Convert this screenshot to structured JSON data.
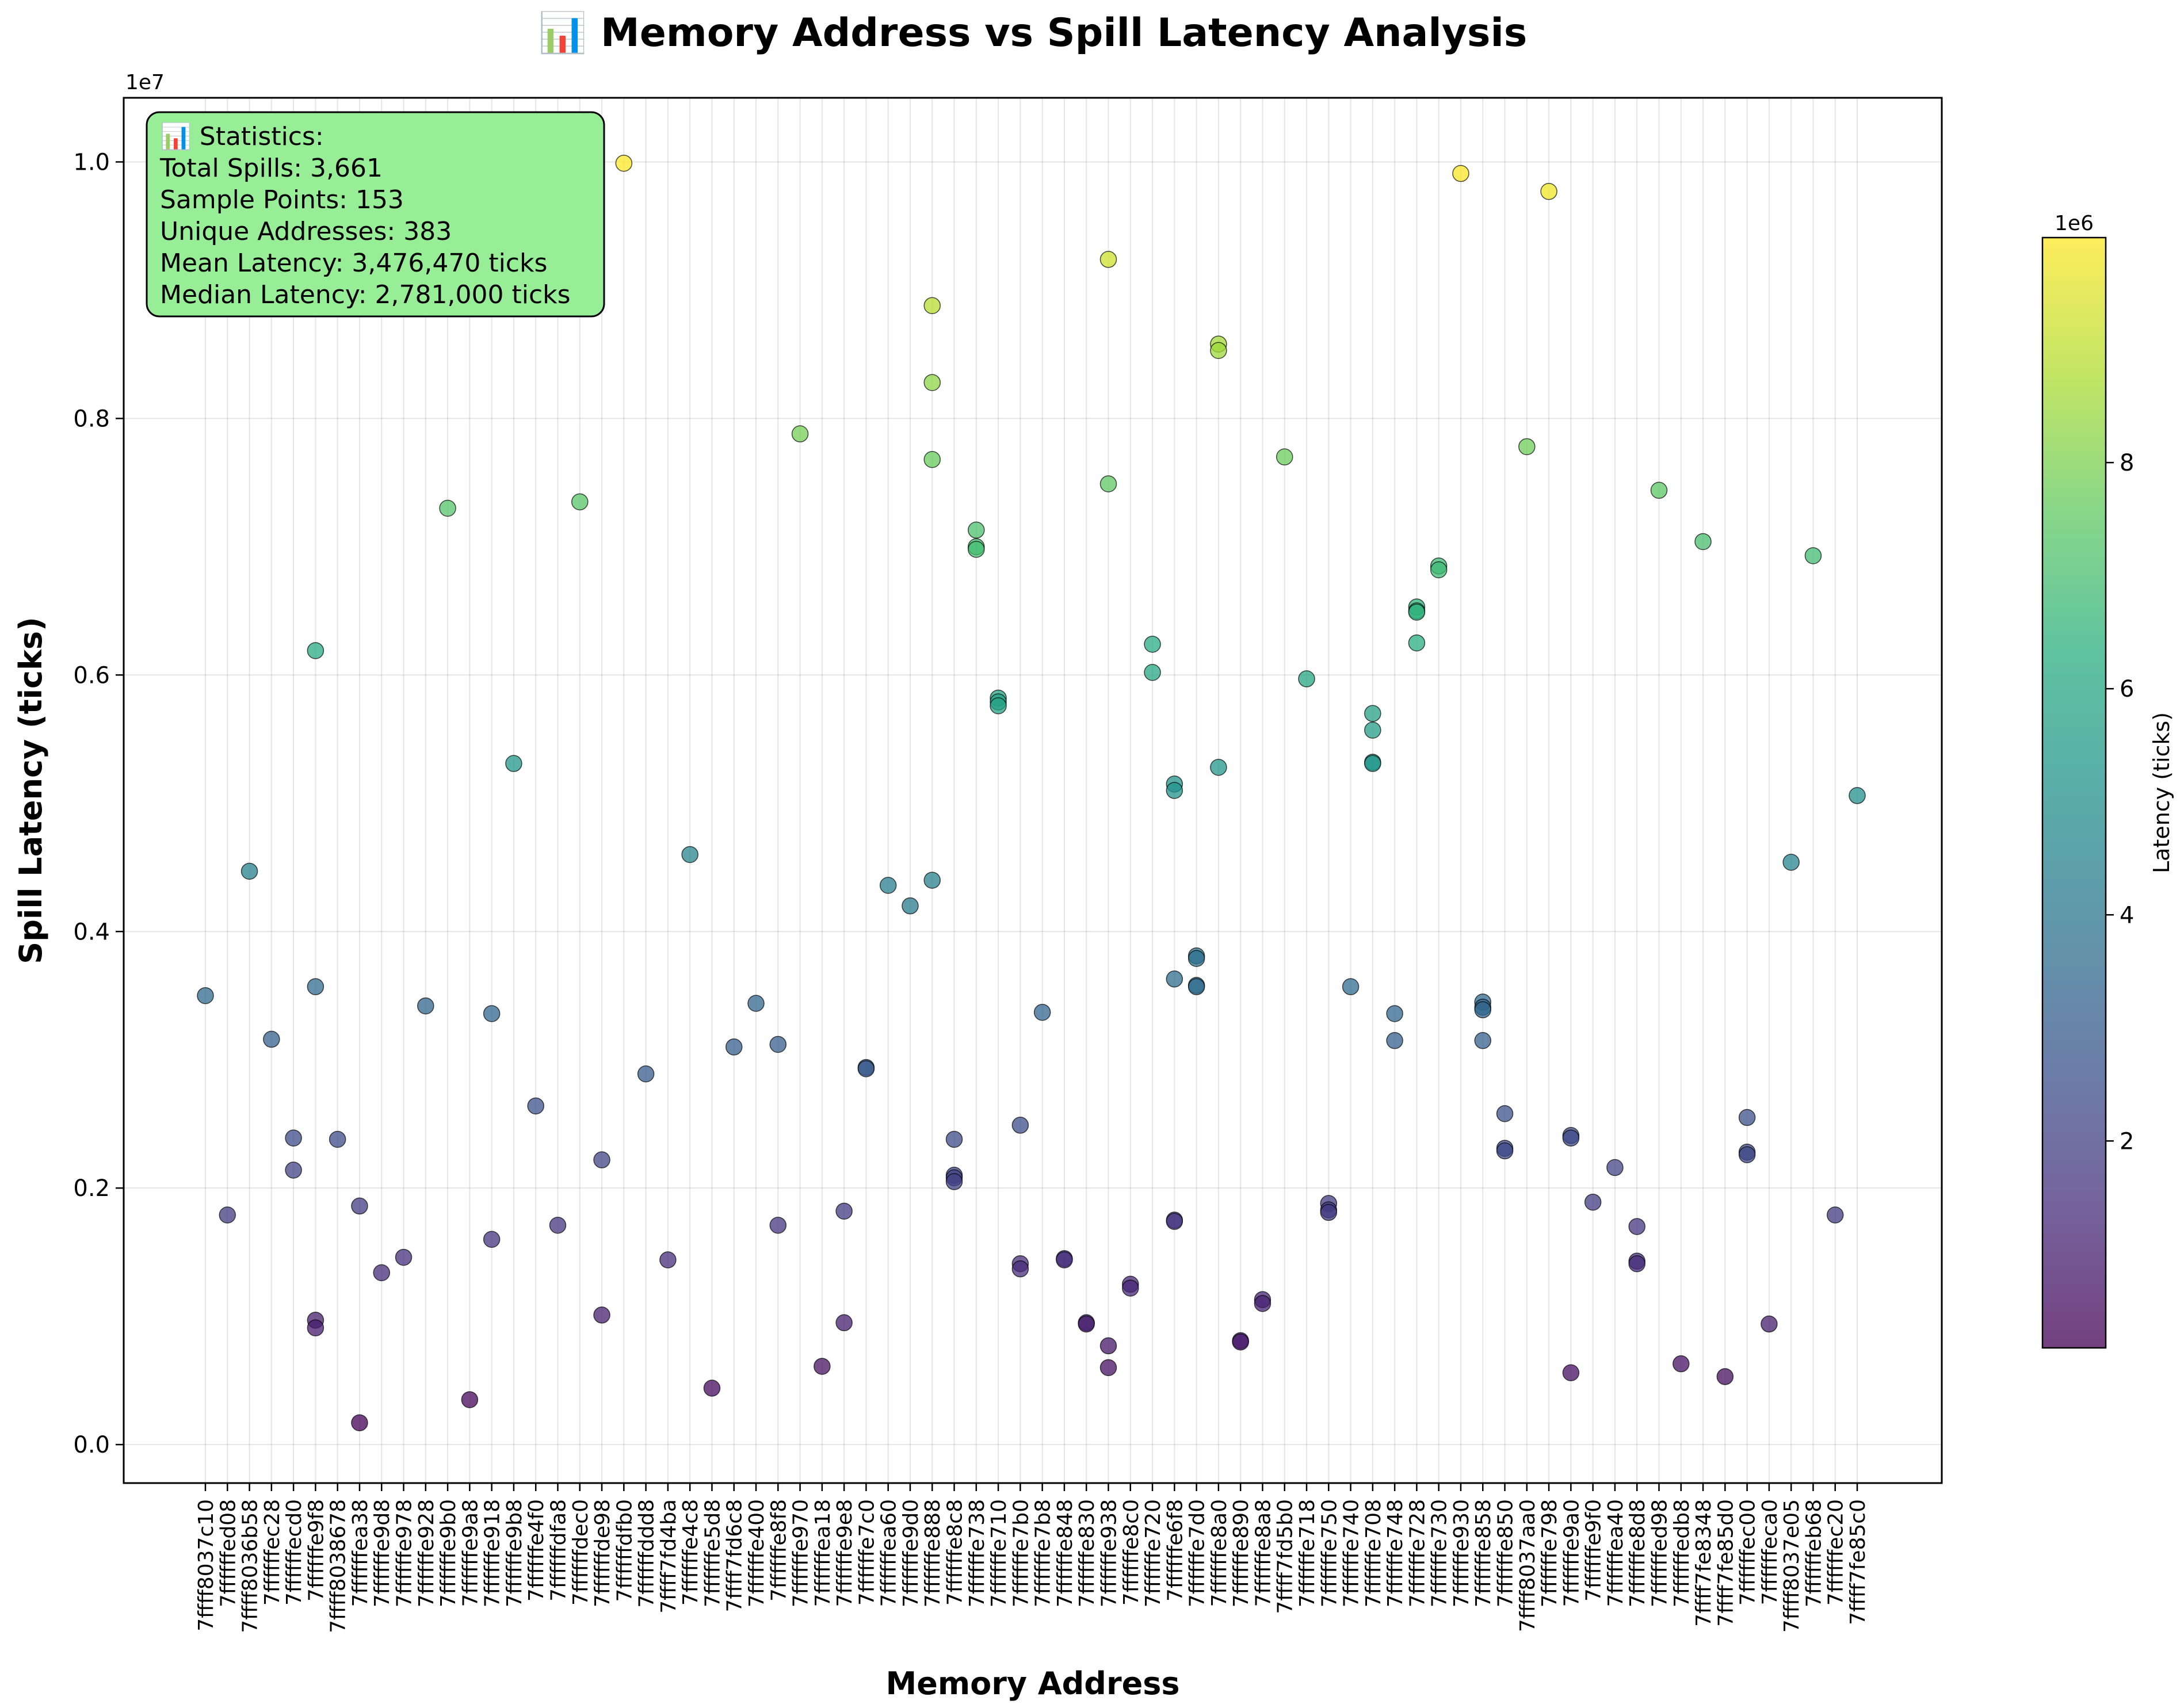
{
  "chart_data": {
    "type": "scatter",
    "title": "📊 Memory Address vs Spill Latency Analysis",
    "xlabel": "Memory Address",
    "ylabel": "Spill Latency (ticks)",
    "y_multiplier_label": "1e7",
    "ylim": [
      -300000,
      10500000
    ],
    "yticks": [
      0,
      2000000,
      4000000,
      6000000,
      8000000,
      10000000
    ],
    "ytick_labels": [
      "0.0",
      "0.2",
      "0.4",
      "0.6",
      "0.8",
      "1.0"
    ],
    "grid": true,
    "categories": [
      "7ffff8037c10",
      "7ffffffed08",
      "7ffff8036b58",
      "7ffffffec28",
      "7ffffffecd0",
      "7ffffffe9f8",
      "7ffff8038678",
      "7ffffffea38",
      "7ffffffe9d8",
      "7ffffffe978",
      "7ffffffe928",
      "7ffffffe9b0",
      "7ffffffe9a8",
      "7ffffffe918",
      "7ffffffe9b8",
      "7ffffffe4f0",
      "7ffffffdfa8",
      "7ffffffdec0",
      "7ffffffde98",
      "7ffffffdfb0",
      "7ffffffddd8",
      "7ffff7fd4ba",
      "7ffffffe4c8",
      "7ffffffe5d8",
      "7ffff7fd6c8",
      "7ffffffe400",
      "7ffffffe8f8",
      "7ffffffe970",
      "7ffffffea18",
      "7ffffffe9e8",
      "7ffffffe7c0",
      "7ffffffea60",
      "7ffffffe9d0",
      "7ffffffe888",
      "7ffffffe8c8",
      "7ffffffe738",
      "7ffffffe710",
      "7ffffffe7b0",
      "7ffffffe7b8",
      "7ffffffe848",
      "7ffffffe830",
      "7ffffffe938",
      "7ffffffe8c0",
      "7ffffffe720",
      "7ffffffe6f8",
      "7ffffffe7d0",
      "7ffffffe8a0",
      "7ffffffe890",
      "7ffffffe8a8",
      "7ffff7fd5b0",
      "7ffffffe718",
      "7ffffffe750",
      "7ffffffe740",
      "7ffffffe708",
      "7ffffffe748",
      "7ffffffe728",
      "7ffffffe730",
      "7ffffffe930",
      "7ffffffe858",
      "7ffffffe850",
      "7ffff8037aa0",
      "7ffffffe798",
      "7ffffffe9a0",
      "7ffffffe9f0",
      "7ffffffea40",
      "7ffffffe8d8",
      "7ffffffed98",
      "7ffffffedb8",
      "7ffff7fe8348",
      "7ffff7fe85d0",
      "7ffffffec00",
      "7ffffffeca0",
      "7ffff8037e05",
      "7ffffffeb68",
      "7ffffffec20",
      "7ffff7fe85c0"
    ],
    "points": [
      [
        0,
        3500000
      ],
      [
        1,
        1790000
      ],
      [
        2,
        4470000
      ],
      [
        3,
        3160000
      ],
      [
        4,
        2390000
      ],
      [
        4,
        2140000
      ],
      [
        5,
        6190000
      ],
      [
        5,
        3570000
      ],
      [
        5,
        970000
      ],
      [
        5,
        910000
      ],
      [
        6,
        2380000
      ],
      [
        7,
        1860000
      ],
      [
        7,
        170000
      ],
      [
        8,
        1340000
      ],
      [
        9,
        1460000
      ],
      [
        10,
        3420000
      ],
      [
        11,
        7300000
      ],
      [
        12,
        350000
      ],
      [
        13,
        3360000
      ],
      [
        13,
        1600000
      ],
      [
        14,
        5310000
      ],
      [
        15,
        2640000
      ],
      [
        16,
        1710000
      ],
      [
        17,
        7350000
      ],
      [
        18,
        2220000
      ],
      [
        18,
        1010000
      ],
      [
        19,
        9990000
      ],
      [
        20,
        2890000
      ],
      [
        21,
        1440000
      ],
      [
        22,
        4600000
      ],
      [
        23,
        440000
      ],
      [
        24,
        3100000
      ],
      [
        25,
        3440000
      ],
      [
        26,
        3120000
      ],
      [
        26,
        1710000
      ],
      [
        27,
        7880000
      ],
      [
        28,
        610000
      ],
      [
        29,
        1820000
      ],
      [
        29,
        950000
      ],
      [
        30,
        2940000
      ],
      [
        30,
        2930000
      ],
      [
        31,
        4360000
      ],
      [
        32,
        4200000
      ],
      [
        33,
        8880000
      ],
      [
        33,
        8280000
      ],
      [
        33,
        7680000
      ],
      [
        33,
        4400000
      ],
      [
        34,
        2380000
      ],
      [
        34,
        2100000
      ],
      [
        34,
        2080000
      ],
      [
        34,
        2050000
      ],
      [
        35,
        7130000
      ],
      [
        35,
        7000000
      ],
      [
        35,
        6980000
      ],
      [
        36,
        5820000
      ],
      [
        36,
        5790000
      ],
      [
        36,
        5760000
      ],
      [
        37,
        2490000
      ],
      [
        37,
        1410000
      ],
      [
        37,
        1370000
      ],
      [
        38,
        3370000
      ],
      [
        39,
        1450000
      ],
      [
        39,
        1440000
      ],
      [
        40,
        950000
      ],
      [
        40,
        940000
      ],
      [
        41,
        9240000
      ],
      [
        41,
        7490000
      ],
      [
        41,
        770000
      ],
      [
        41,
        600000
      ],
      [
        42,
        1250000
      ],
      [
        42,
        1220000
      ],
      [
        43,
        6240000
      ],
      [
        43,
        6020000
      ],
      [
        44,
        5150000
      ],
      [
        44,
        5100000
      ],
      [
        44,
        3630000
      ],
      [
        44,
        1750000
      ],
      [
        44,
        1740000
      ],
      [
        45,
        3810000
      ],
      [
        45,
        3790000
      ],
      [
        45,
        3580000
      ],
      [
        45,
        3570000
      ],
      [
        46,
        8580000
      ],
      [
        46,
        8530000
      ],
      [
        46,
        5280000
      ],
      [
        47,
        810000
      ],
      [
        47,
        800000
      ],
      [
        48,
        1130000
      ],
      [
        48,
        1100000
      ],
      [
        49,
        7700000
      ],
      [
        50,
        5970000
      ],
      [
        51,
        1880000
      ],
      [
        51,
        1830000
      ],
      [
        51,
        1810000
      ],
      [
        52,
        3570000
      ],
      [
        53,
        5700000
      ],
      [
        53,
        5570000
      ],
      [
        53,
        5320000
      ],
      [
        53,
        5310000
      ],
      [
        54,
        3360000
      ],
      [
        54,
        3150000
      ],
      [
        55,
        6530000
      ],
      [
        55,
        6500000
      ],
      [
        55,
        6490000
      ],
      [
        55,
        6250000
      ],
      [
        56,
        6850000
      ],
      [
        56,
        6820000
      ],
      [
        57,
        9910000
      ],
      [
        58,
        3450000
      ],
      [
        58,
        3410000
      ],
      [
        58,
        3390000
      ],
      [
        58,
        3150000
      ],
      [
        59,
        2580000
      ],
      [
        59,
        2310000
      ],
      [
        59,
        2290000
      ],
      [
        60,
        7780000
      ],
      [
        61,
        9770000
      ],
      [
        62,
        2410000
      ],
      [
        62,
        2390000
      ],
      [
        62,
        560000
      ],
      [
        63,
        1890000
      ],
      [
        64,
        2160000
      ],
      [
        65,
        1700000
      ],
      [
        65,
        1430000
      ],
      [
        65,
        1410000
      ],
      [
        66,
        7440000
      ],
      [
        67,
        630000
      ],
      [
        68,
        7040000
      ],
      [
        69,
        530000
      ],
      [
        70,
        2550000
      ],
      [
        70,
        2280000
      ],
      [
        70,
        2260000
      ],
      [
        71,
        940000
      ],
      [
        72,
        4540000
      ],
      [
        73,
        6930000
      ],
      [
        74,
        1790000
      ],
      [
        75,
        5060000
      ]
    ],
    "colormap": "viridis",
    "colorbar": {
      "label": "Latency (ticks)",
      "multiplier_label": "1e6",
      "vmin": 170000,
      "vmax": 9990000,
      "ticks": [
        2000000,
        4000000,
        6000000,
        8000000
      ],
      "tick_labels": [
        "2",
        "4",
        "6",
        "8"
      ]
    },
    "stats_box": {
      "lines": [
        "📊 Statistics:",
        "Total Spills: 3,661",
        "Sample Points: 153",
        "Unique Addresses: 383",
        "Mean Latency: 3,476,470 ticks",
        "Median Latency: 2,781,000 ticks"
      ],
      "background": "#98ee96"
    }
  }
}
